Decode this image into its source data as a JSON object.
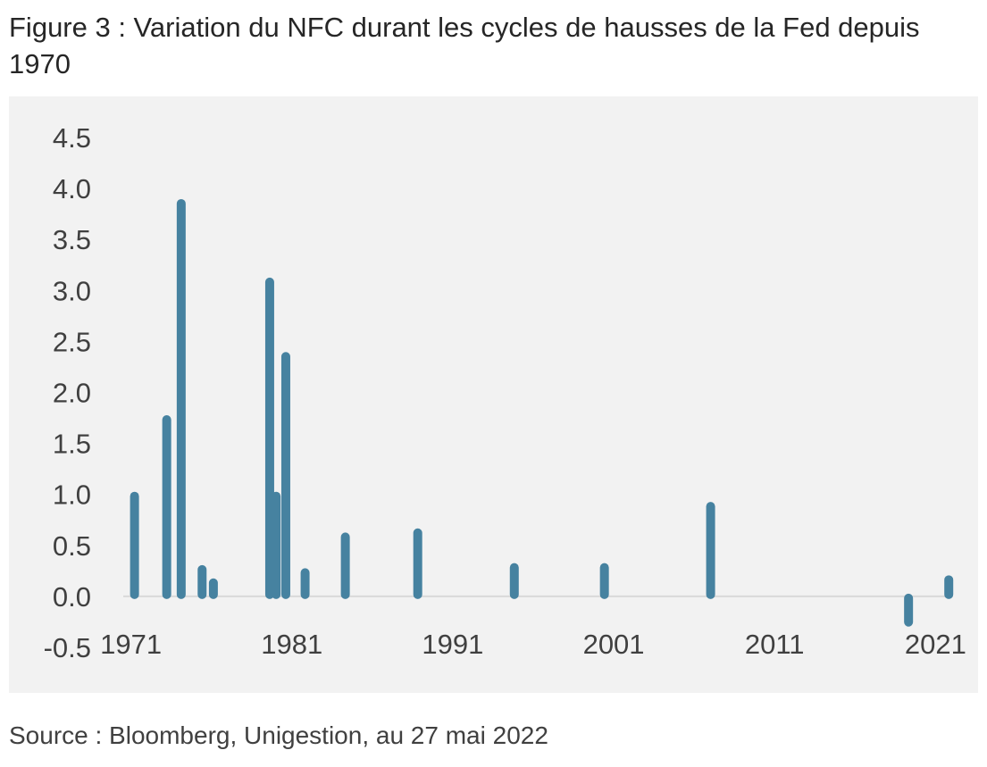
{
  "title": "Figure 3 : Variation du NFC durant les cycles de hausses de la Fed depuis 1970",
  "source": "Source : Bloomberg, Unigestion, au 27 mai 2022",
  "colors": {
    "bar": "#4682a0",
    "background": "#f2f2f2",
    "axis": "#d9d9d9",
    "text": "#404040"
  },
  "chart_data": {
    "type": "bar",
    "title": "",
    "xlabel": "",
    "ylabel": "",
    "ylim": [
      -0.5,
      4.5
    ],
    "xlim": [
      1970.8,
      2022.2
    ],
    "x_ticks": [
      1971,
      1981,
      1991,
      2001,
      2011,
      2021
    ],
    "x_tick_labels": [
      "1971",
      "1981",
      "1991",
      "2001",
      "2011",
      "2021"
    ],
    "y_ticks": [
      4.5,
      4.0,
      3.5,
      3.0,
      2.5,
      2.0,
      1.5,
      1.0,
      0.5,
      0.0,
      -0.5
    ],
    "y_tick_labels": [
      "4.5",
      "4.0",
      "3.5",
      "3.0",
      "2.5",
      "2.0",
      "1.5",
      "1.0",
      "0.5",
      "0.0",
      "-0.5"
    ],
    "grid": false,
    "legend": "none",
    "series": [
      {
        "x": [
          1971.5,
          1973.5,
          1974.4,
          1975.7,
          1976.4,
          1979.9,
          1980.3,
          1980.9,
          1982.1,
          1984.6,
          1989.1,
          1995.1,
          2000.7,
          2007.3,
          2019.6,
          2022.1
        ],
        "values": [
          1.0,
          1.75,
          3.87,
          0.28,
          0.15,
          3.1,
          1.0,
          2.37,
          0.25,
          0.6,
          0.64,
          0.3,
          0.3,
          0.9,
          -0.27,
          0.18
        ]
      }
    ]
  }
}
